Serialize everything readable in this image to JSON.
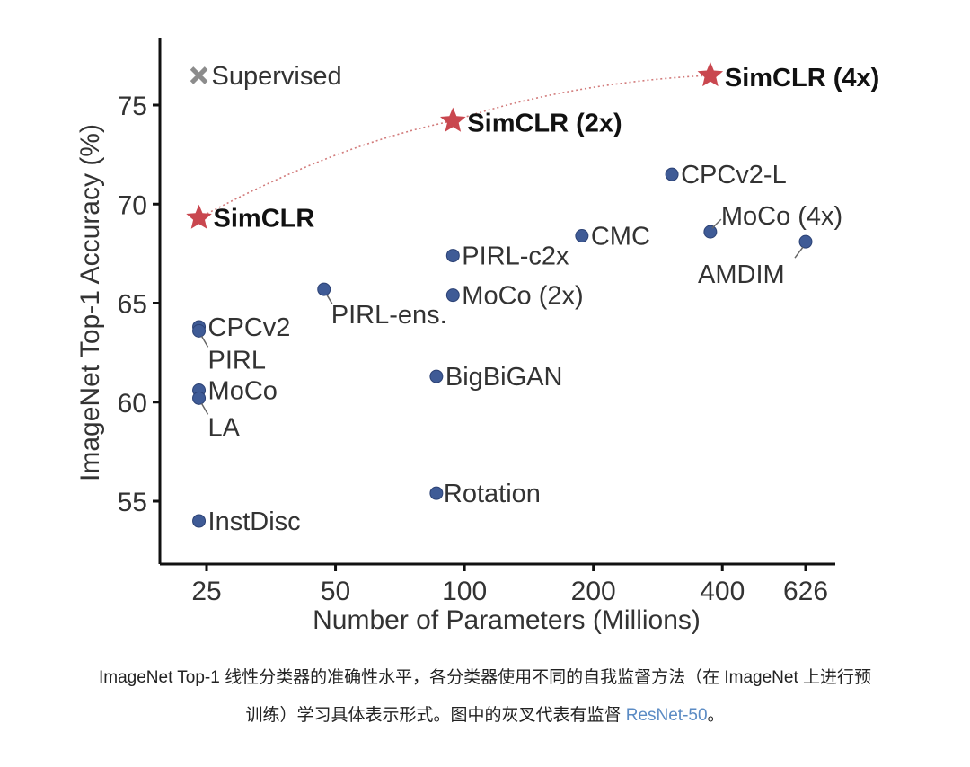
{
  "chart_data": {
    "type": "scatter",
    "xlabel": "Number of Parameters (Millions)",
    "ylabel": "ImageNet Top-1 Accuracy (%)",
    "x_scale": "log",
    "x_ticks": [
      25,
      50,
      100,
      200,
      400,
      626
    ],
    "y_ticks": [
      55,
      60,
      65,
      70,
      75
    ],
    "xlim": [
      20,
      700
    ],
    "ylim": [
      52.5,
      77.5
    ],
    "colors": {
      "simclr": "#c9474f",
      "method": "#3f5b96",
      "supervised": "#8c8c8c",
      "trend": "#d27b7b",
      "axis": "#111111"
    },
    "points": [
      {
        "label": "Supervised",
        "x": 24,
        "y": 76.5,
        "marker": "x",
        "style": "supervised"
      },
      {
        "label": "SimCLR",
        "x": 24,
        "y": 69.3,
        "marker": "star",
        "style": "bold"
      },
      {
        "label": "SimCLR (2x)",
        "x": 94,
        "y": 74.2,
        "marker": "star",
        "style": "bold"
      },
      {
        "label": "SimCLR (4x)",
        "x": 375,
        "y": 76.5,
        "marker": "star",
        "style": "bold"
      },
      {
        "label": "CPCv2",
        "x": 24,
        "y": 63.8,
        "marker": "dot"
      },
      {
        "label": "PIRL",
        "x": 24,
        "y": 63.6,
        "marker": "dot"
      },
      {
        "label": "MoCo",
        "x": 24,
        "y": 60.6,
        "marker": "dot"
      },
      {
        "label": "LA",
        "x": 24,
        "y": 60.2,
        "marker": "dot"
      },
      {
        "label": "InstDisc",
        "x": 24,
        "y": 54.0,
        "marker": "dot"
      },
      {
        "label": "PIRL-ens.",
        "x": 47,
        "y": 65.7,
        "marker": "dot"
      },
      {
        "label": "PIRL-c2x",
        "x": 94,
        "y": 67.4,
        "marker": "dot"
      },
      {
        "label": "MoCo (2x)",
        "x": 94,
        "y": 65.4,
        "marker": "dot"
      },
      {
        "label": "BigBiGAN",
        "x": 86,
        "y": 61.3,
        "marker": "dot"
      },
      {
        "label": "Rotation",
        "x": 86,
        "y": 55.4,
        "marker": "dot"
      },
      {
        "label": "CMC",
        "x": 188,
        "y": 68.4,
        "marker": "dot"
      },
      {
        "label": "CPCv2-L",
        "x": 305,
        "y": 71.5,
        "marker": "dot"
      },
      {
        "label": "MoCo (4x)",
        "x": 375,
        "y": 68.6,
        "marker": "dot"
      },
      {
        "label": "AMDIM",
        "x": 626,
        "y": 68.1,
        "marker": "dot"
      }
    ],
    "trend_line": [
      "SimCLR",
      "SimCLR (2x)",
      "SimCLR (4x)"
    ]
  },
  "caption": {
    "line1": "ImageNet Top-1 线性分类器的准确性水平，各分类器使用不同的自我监督方法（在 ImageNet 上进行预",
    "line2_before": "训练）学习具体表示形式。图中的灰叉代表有监督 ",
    "line2_link": "ResNet-50",
    "line2_after": "。"
  }
}
